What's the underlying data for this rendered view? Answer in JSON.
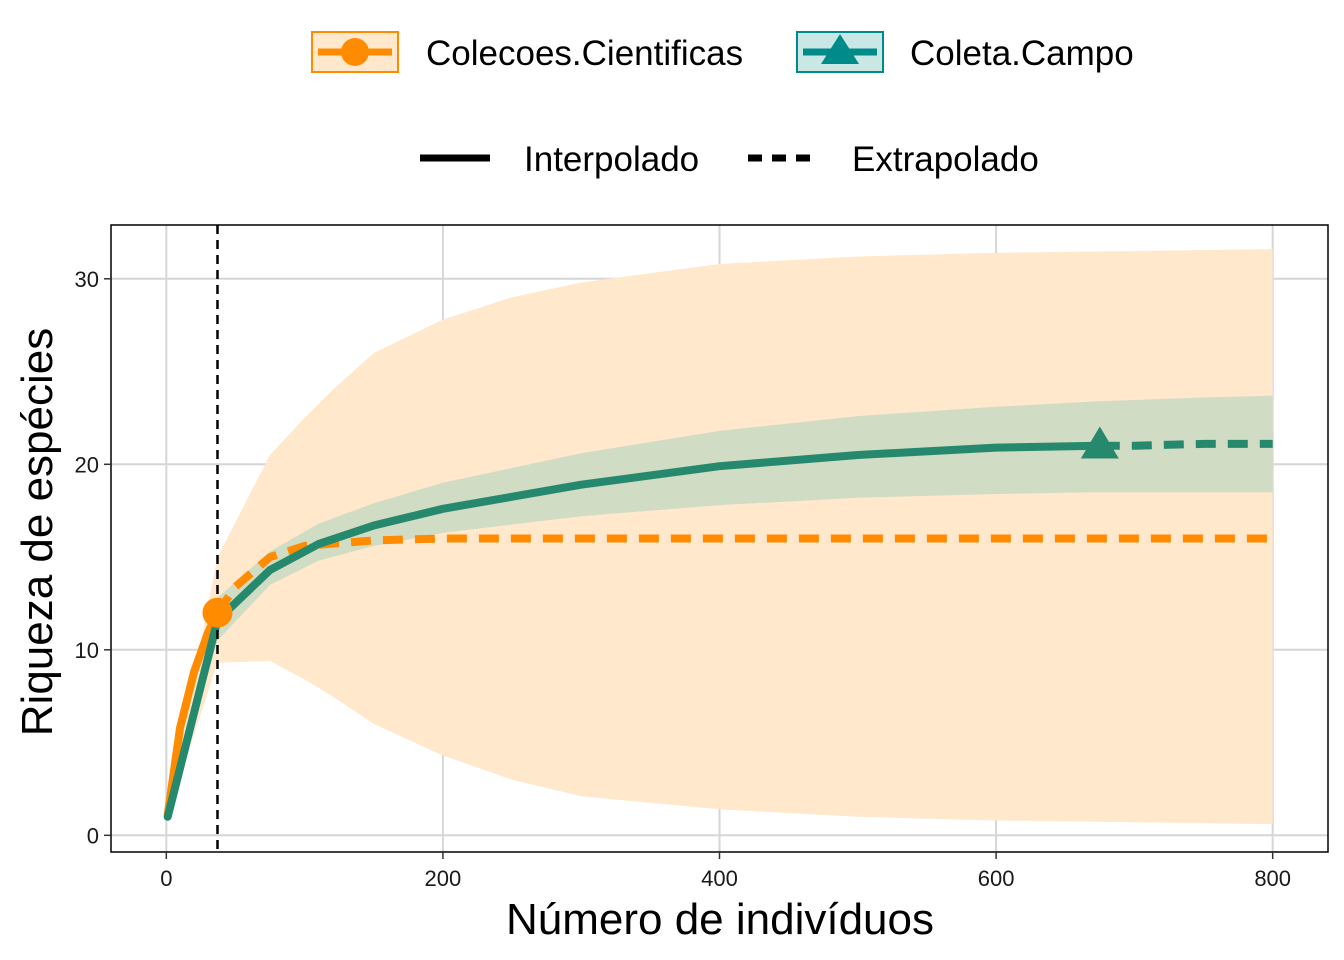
{
  "chart_data": {
    "type": "line",
    "title": "",
    "xlabel": "Número de indivíduos",
    "ylabel": "Riqueza de espécies",
    "xlim": [
      -40,
      840
    ],
    "ylim": [
      -0.9,
      32.9
    ],
    "x_ticks": [
      0,
      200,
      400,
      600,
      800
    ],
    "y_ticks": [
      0,
      10,
      20,
      30
    ],
    "grid": true,
    "legend_position": "top",
    "reference_line": {
      "x": 37,
      "style": "dashed",
      "color": "#000000"
    },
    "line_type_legend": [
      {
        "label": "Interpolado",
        "style": "solid"
      },
      {
        "label": "Extrapolado",
        "style": "dashed"
      }
    ],
    "series": [
      {
        "name": "Colecoes.Cientificas",
        "color": "#FF8C00",
        "fill": "#FFE8CC",
        "marker": "circle",
        "observed": {
          "x": 37,
          "y": 12
        },
        "interpolated": {
          "x": [
            1,
            10,
            20,
            30,
            37
          ],
          "y": [
            1.1,
            5.8,
            8.8,
            10.9,
            12.0
          ]
        },
        "extrapolated": {
          "x": [
            37,
            50,
            75,
            100,
            150,
            200,
            300,
            400,
            500,
            600,
            700,
            800
          ],
          "y": [
            12.0,
            13.4,
            15.0,
            15.6,
            15.9,
            16.0,
            16.0,
            16.0,
            16.0,
            16.0,
            16.0,
            16.0
          ]
        },
        "ci": {
          "x": [
            1,
            37,
            75,
            100,
            120,
            150,
            200,
            250,
            300,
            400,
            500,
            600,
            700,
            800
          ],
          "lower": [
            1.1,
            9.3,
            9.4,
            8.4,
            7.5,
            6.0,
            4.3,
            3.0,
            2.1,
            1.4,
            1.0,
            0.8,
            0.7,
            0.6
          ],
          "upper": [
            1.1,
            15.0,
            20.5,
            22.5,
            24.0,
            26.0,
            27.8,
            29.0,
            29.8,
            30.8,
            31.2,
            31.4,
            31.5,
            31.6
          ]
        }
      },
      {
        "name": "Coleta.Campo",
        "color": "#26896E",
        "legend_color": "#008B8B",
        "fill": "#C8D9C2",
        "marker": "triangle",
        "observed": {
          "x": 675,
          "y": 21.0
        },
        "interpolated": {
          "x": [
            1,
            37,
            75,
            110,
            150,
            200,
            300,
            400,
            500,
            600,
            675
          ],
          "y": [
            1.0,
            11.6,
            14.3,
            15.7,
            16.7,
            17.6,
            18.9,
            19.9,
            20.5,
            20.9,
            21.0
          ]
        },
        "extrapolated": {
          "x": [
            675,
            700,
            750,
            800
          ],
          "y": [
            21.0,
            21.0,
            21.1,
            21.1
          ]
        },
        "ci": {
          "x": [
            1,
            37,
            75,
            110,
            150,
            200,
            300,
            400,
            500,
            600,
            675,
            750,
            800
          ],
          "lower": [
            1.0,
            10.5,
            13.5,
            14.8,
            15.6,
            16.3,
            17.2,
            17.8,
            18.2,
            18.4,
            18.5,
            18.5,
            18.5
          ],
          "upper": [
            1.0,
            12.8,
            15.3,
            16.8,
            17.9,
            19.0,
            20.6,
            21.8,
            22.6,
            23.1,
            23.4,
            23.6,
            23.7
          ]
        }
      }
    ]
  }
}
